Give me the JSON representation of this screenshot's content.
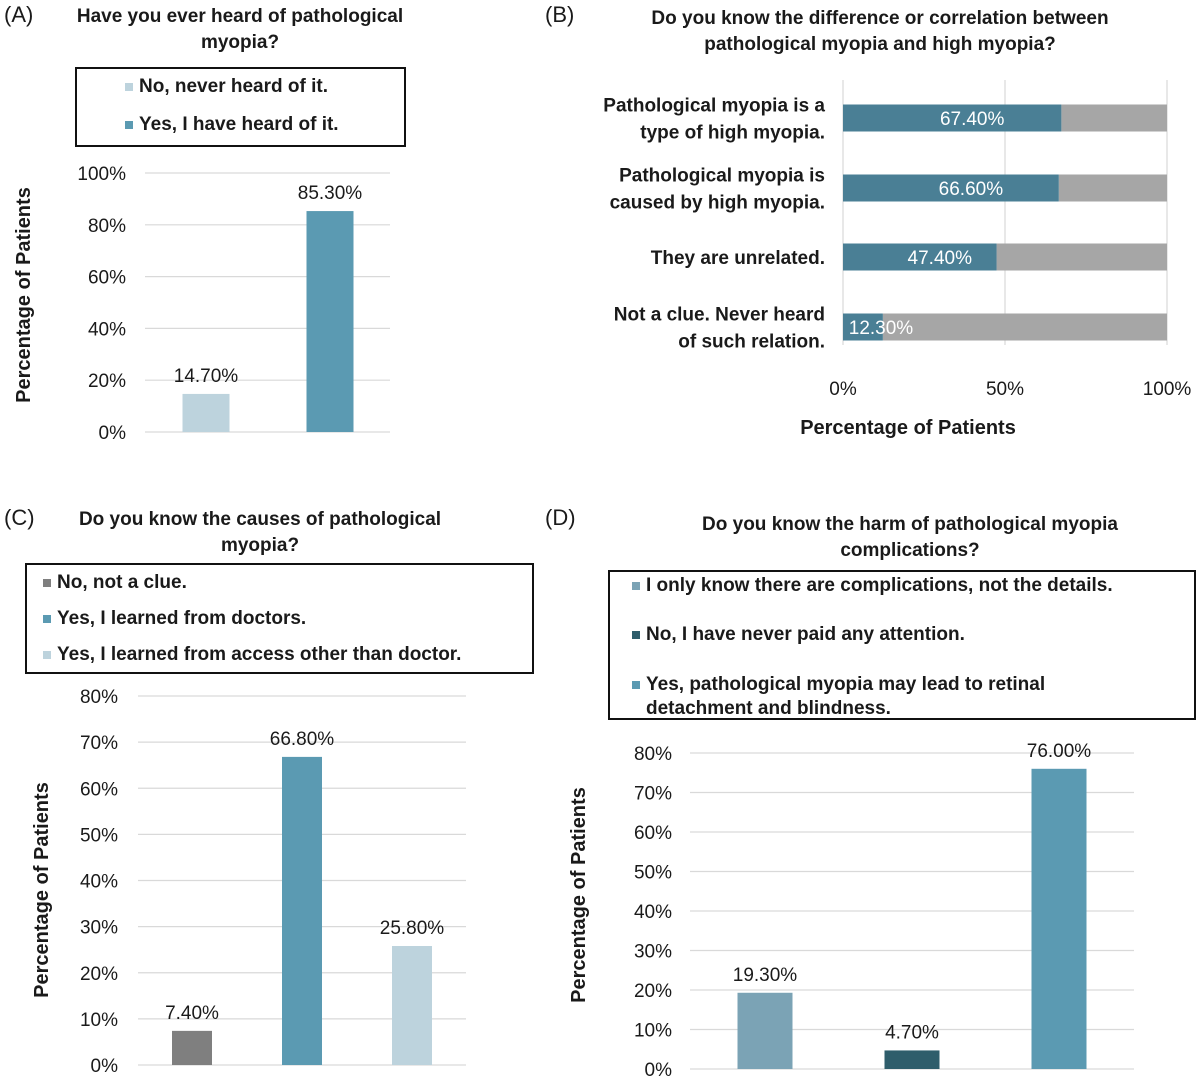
{
  "colors": {
    "teal": "#5b9ab2",
    "light_blue": "#bdd3dd",
    "dark_gray": "#7f7f7f",
    "dark_teal": "#2e5d6b",
    "bar_teal_b": "#4a7f95",
    "remainder_gray": "#a6a6a6",
    "steel": "#7ba3b5",
    "gridline": "#d9d9d9"
  },
  "panels": {
    "a": {
      "label": "(A)",
      "title_lines": [
        "Have you ever heard of pathological",
        "myopia?"
      ],
      "legend": [
        "No, never heard of it.",
        "Yes, I have heard of it."
      ]
    },
    "b": {
      "label": "(B)",
      "title_lines": [
        "Do you know the difference or correlation between",
        "pathological myopia and high myopia?"
      ]
    },
    "c": {
      "label": "(C)",
      "title_lines": [
        "Do you know the causes of pathological",
        "myopia?"
      ],
      "legend": [
        "No, not a clue.",
        "Yes, I learned from doctors.",
        "Yes, I learned from access other than doctor."
      ]
    },
    "d": {
      "label": "(D)",
      "title_lines": [
        "Do you know the harm of pathological myopia",
        "complications?"
      ],
      "legend": [
        "I only know there are complications, not the details.",
        "No, I have never paid any attention.",
        "Yes, pathological myopia may lead to retinal",
        "detachment and blindness."
      ]
    }
  },
  "chart_data": [
    {
      "id": "A",
      "type": "bar",
      "title": "Have you ever heard of pathological myopia?",
      "ylabel": "Percentage of Patients",
      "ylim": [
        0,
        100
      ],
      "yticks": [
        "0%",
        "20%",
        "40%",
        "60%",
        "80%",
        "100%"
      ],
      "categories": [
        "No, never heard of it.",
        "Yes, I have heard of it."
      ],
      "values": [
        14.7,
        85.3
      ],
      "data_labels": [
        "14.70%",
        "85.30%"
      ],
      "colors": [
        "#bdd3dd",
        "#5b9ab2"
      ],
      "legend": "top",
      "grid": true
    },
    {
      "id": "B",
      "type": "bar",
      "orientation": "horizontal",
      "stacked_100": true,
      "title": "Do you know the difference or correlation between pathological myopia and high myopia?",
      "xlabel": "Percentage of Patients",
      "xlim": [
        0,
        100
      ],
      "xticks": [
        "0%",
        "50%",
        "100%"
      ],
      "categories": [
        [
          "Pathological myopia is a",
          "type of high myopia."
        ],
        [
          "Pathological myopia is",
          "caused by high myopia."
        ],
        [
          "They are unrelated."
        ],
        [
          "Not a clue. Never heard",
          "of such relation."
        ]
      ],
      "values": [
        67.4,
        66.6,
        47.4,
        12.3
      ],
      "data_labels": [
        "67.40%",
        "66.60%",
        "47.40%",
        "12.30%"
      ],
      "colors": [
        "#4a7f95",
        "#a6a6a6"
      ],
      "grid": true
    },
    {
      "id": "C",
      "type": "bar",
      "title": "Do you know the causes of pathological myopia?",
      "ylabel": "Percentage of Patients",
      "ylim": [
        0,
        80
      ],
      "yticks": [
        "0%",
        "10%",
        "20%",
        "30%",
        "40%",
        "50%",
        "60%",
        "70%",
        "80%"
      ],
      "categories": [
        "No, not a clue.",
        "Yes, I learned from doctors.",
        "Yes, I learned from access other than doctor."
      ],
      "values": [
        7.4,
        66.8,
        25.8
      ],
      "data_labels": [
        "7.40%",
        "66.80%",
        "25.80%"
      ],
      "colors": [
        "#7f7f7f",
        "#5b9ab2",
        "#bdd3dd"
      ],
      "legend": "top",
      "grid": true
    },
    {
      "id": "D",
      "type": "bar",
      "title": "Do you know the harm of pathological myopia complications?",
      "ylabel": "Percentage of Patients",
      "ylim": [
        0,
        80
      ],
      "yticks": [
        "0%",
        "10%",
        "20%",
        "30%",
        "40%",
        "50%",
        "60%",
        "70%",
        "80%"
      ],
      "categories": [
        "I only know there are complications, not the details.",
        "No, I have never paid any attention.",
        "Yes, pathological myopia may lead to retinal detachment and blindness."
      ],
      "values": [
        19.3,
        4.7,
        76.0
      ],
      "data_labels": [
        "19.30%",
        "4.70%",
        "76.00%"
      ],
      "colors": [
        "#7ba3b5",
        "#2e5d6b",
        "#5b9ab2"
      ],
      "legend": "top",
      "grid": true
    }
  ]
}
